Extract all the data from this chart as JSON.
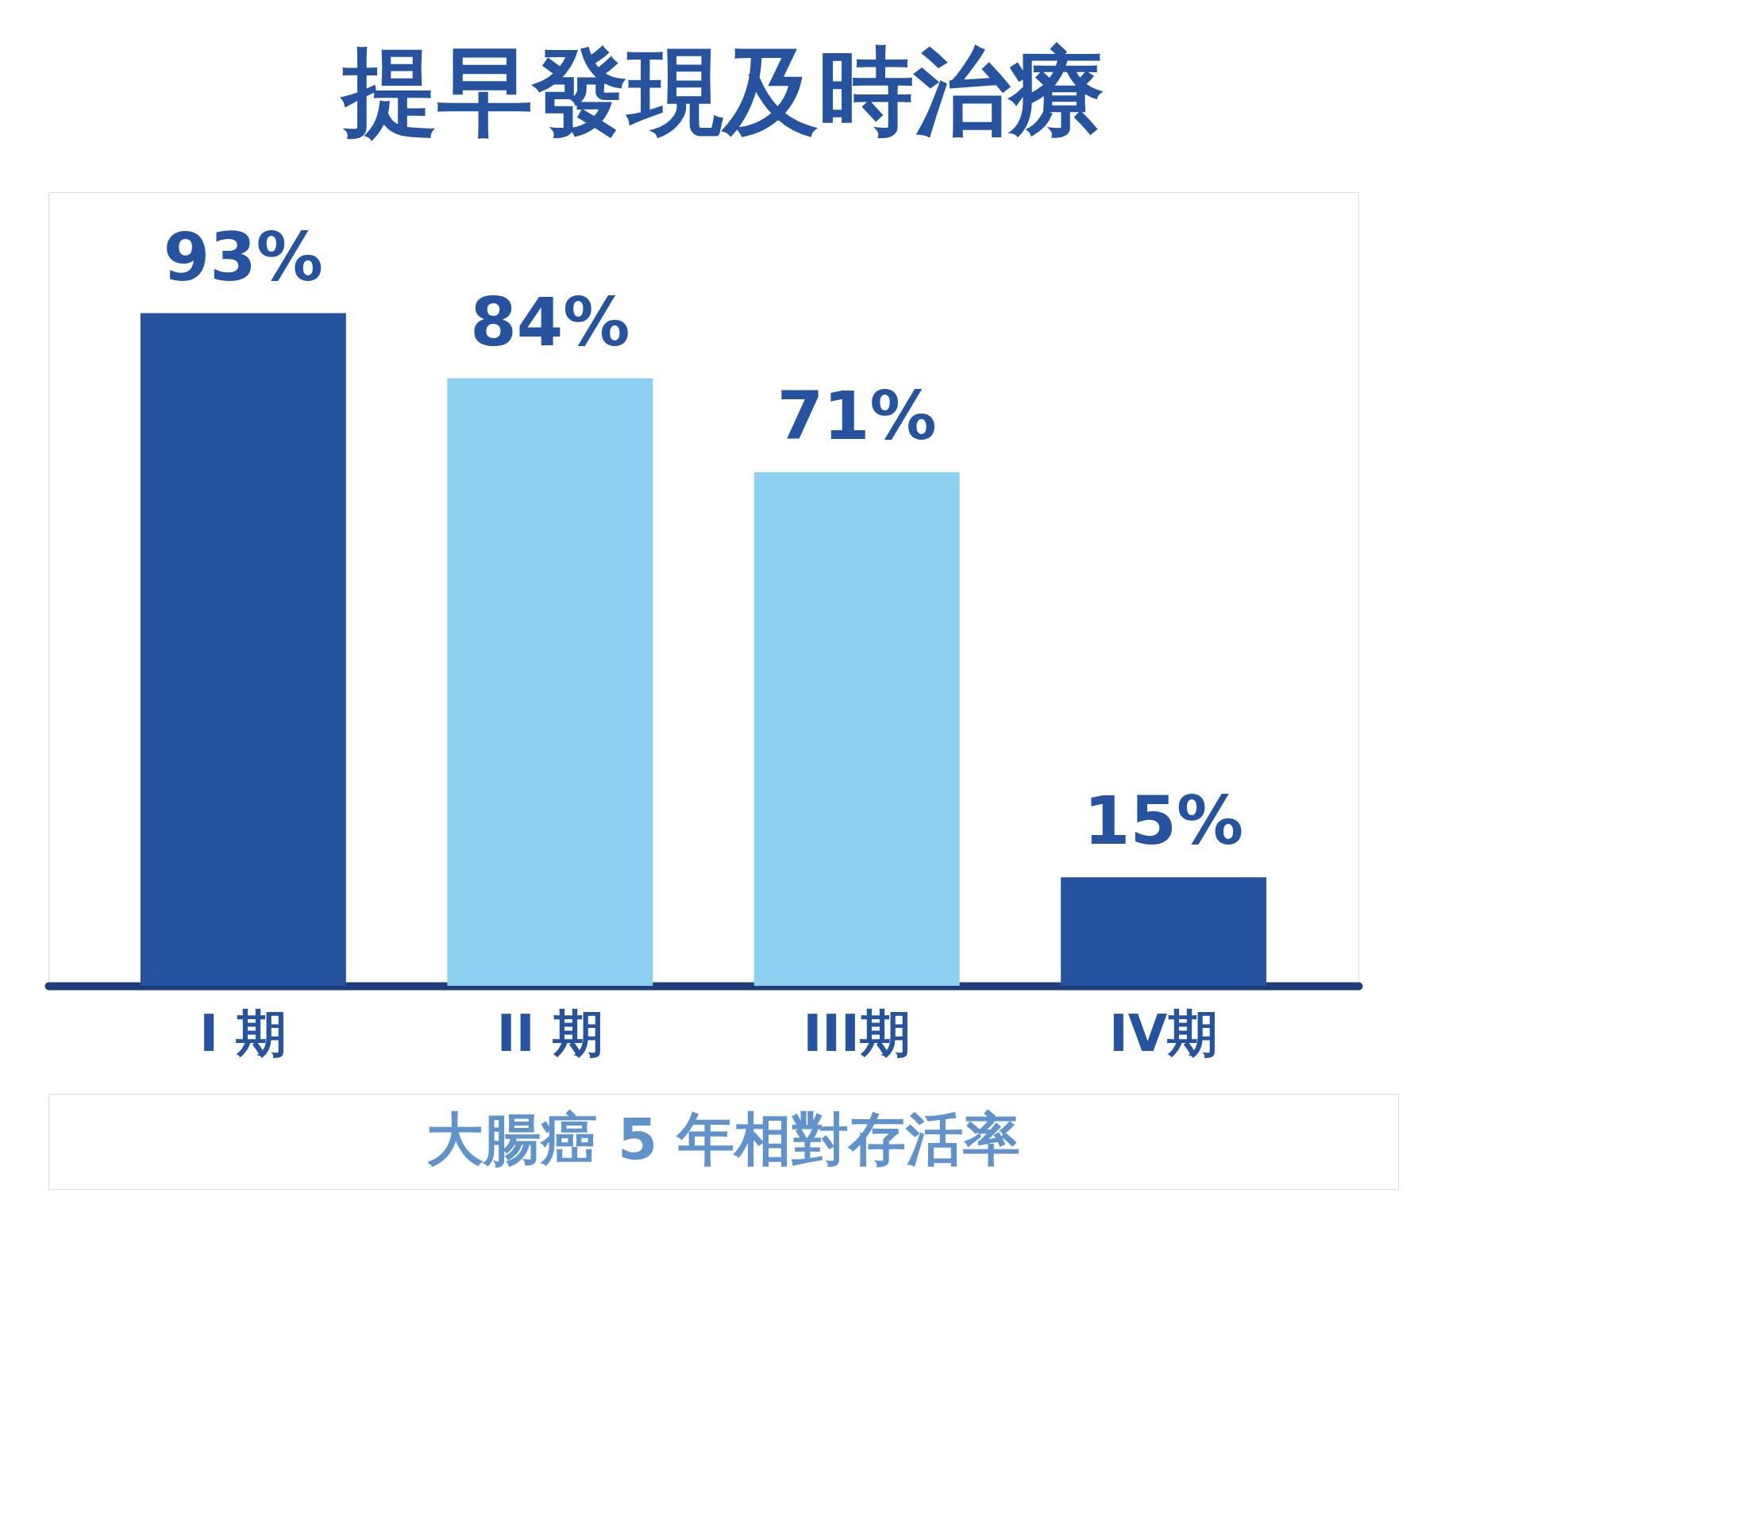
{
  "chart_data": {
    "type": "bar",
    "title": "提早發現及時治療",
    "categories": [
      "I 期",
      "II 期",
      "III期",
      "IV期"
    ],
    "values": [
      93,
      84,
      71,
      15
    ],
    "value_labels": [
      "93%",
      "84%",
      "71%",
      "15%"
    ],
    "colors": [
      "#2553a0",
      "#8ed0f2",
      "#8ed0f2",
      "#2553a0"
    ],
    "tick_labels": "x",
    "annotations": [
      "大腸癌 5 年相對存活率"
    ]
  }
}
